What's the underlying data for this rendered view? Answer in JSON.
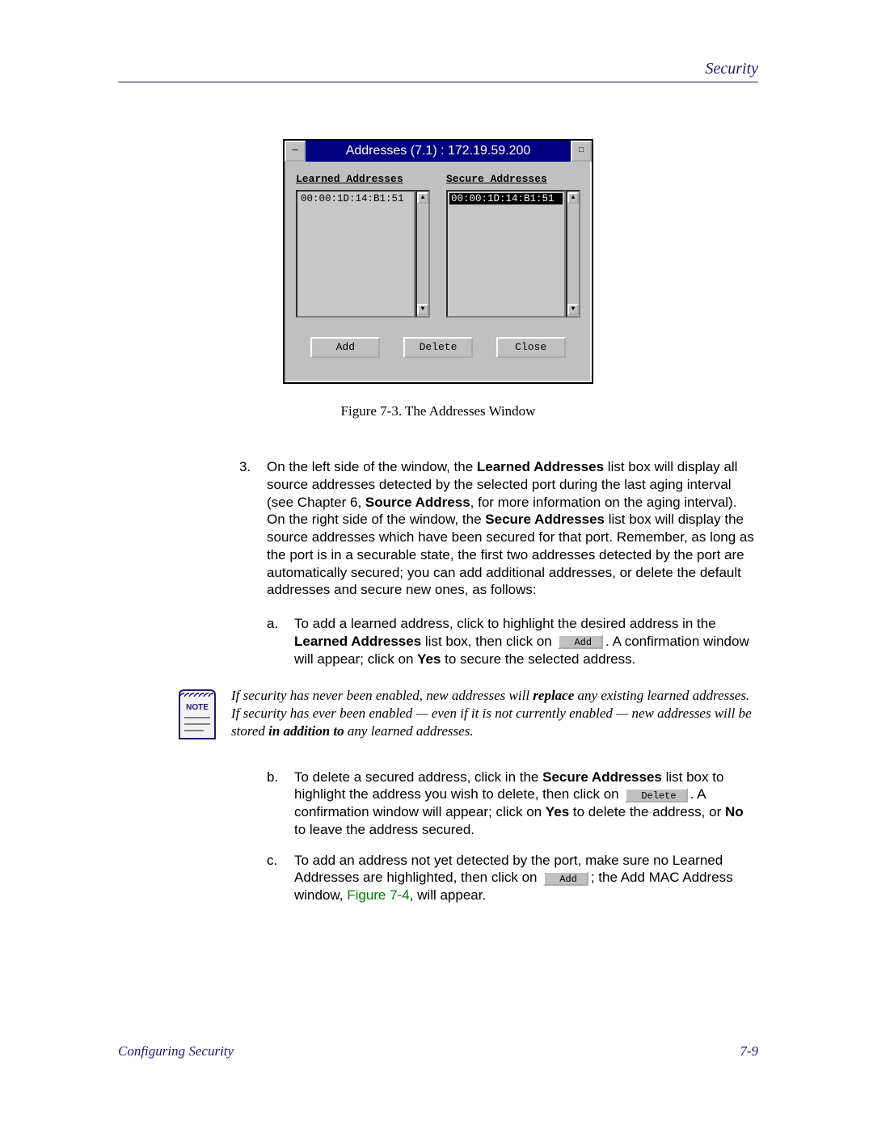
{
  "colors": {
    "accent": "#29166f",
    "crossref": "#008000",
    "dialog_bg": "#c0c0c0",
    "titlebar_bg": "#000080",
    "titlebar_fg": "#ffffff",
    "note_fill": "#f2f2f2",
    "note_border": "#29166f"
  },
  "header": {
    "title": "Security"
  },
  "dialog": {
    "title": "Addresses (7.1) : 172.19.59.200",
    "learned_label": "Learned Addresses",
    "secure_label": "Secure Addresses",
    "learned_items": [
      "00:00:1D:14:B1:51"
    ],
    "secure_items": [
      "00:00:1D:14:B1:51"
    ],
    "secure_selected_index": 0,
    "buttons": {
      "add": "Add",
      "delete": "Delete",
      "close": "Close"
    }
  },
  "figure_caption": "Figure 7-3. The Addresses Window",
  "step3": {
    "num": "3.",
    "p1a": "On the left side of the window, the ",
    "p1b": "Learned Addresses",
    "p1c": " list box will display all source addresses detected by the selected port during the last aging interval (see Chapter 6, ",
    "p1d": "Source Address",
    "p1e": ", for more information on the aging interval). On the right side of the window, the ",
    "p1f": "Secure Addresses",
    "p1g": " list box will display the source addresses which have been secured for that port. Remember, as long as the port is in a securable state, the first two addresses detected by the port are automatically secured; you can add additional addresses, or delete the default addresses and secure new ones, as follows:"
  },
  "stepa": {
    "num": "a.",
    "t1": "To add a learned address, click to highlight the desired address in the ",
    "t2": "Learned Addresses",
    "t3": " list box, then click on ",
    "btn": "Add",
    "t4": ". A confirmation window will appear; click on ",
    "t5": "Yes",
    "t6": " to secure the selected address."
  },
  "note": {
    "label": "NOTE",
    "t1": "If security has never been enabled, new addresses will ",
    "t2": "replace",
    "t3": " any existing learned addresses. If security has ever been enabled — even if it is not currently enabled — new addresses will be stored ",
    "t4": "in addition to",
    "t5": " any learned addresses."
  },
  "stepb": {
    "num": "b.",
    "t1": "To delete a secured address, click in the ",
    "t2": "Secure Addresses",
    "t3": " list box to highlight the address you wish to delete, then click on ",
    "btn": "Delete",
    "t4": ". A confirmation window will appear; click on ",
    "t5": "Yes",
    "t6": " to delete the address, or ",
    "t7": "No",
    "t8": " to leave the address secured."
  },
  "stepc": {
    "num": "c.",
    "t1": "To add an address not yet detected by the port, make sure no Learned Addresses are highlighted, then click on ",
    "btn": "Add",
    "t2": "; the Add MAC Address window, ",
    "ref": "Figure 7-4",
    "t3": ", will appear."
  },
  "footer": {
    "left": "Configuring Security",
    "right": "7-9"
  }
}
